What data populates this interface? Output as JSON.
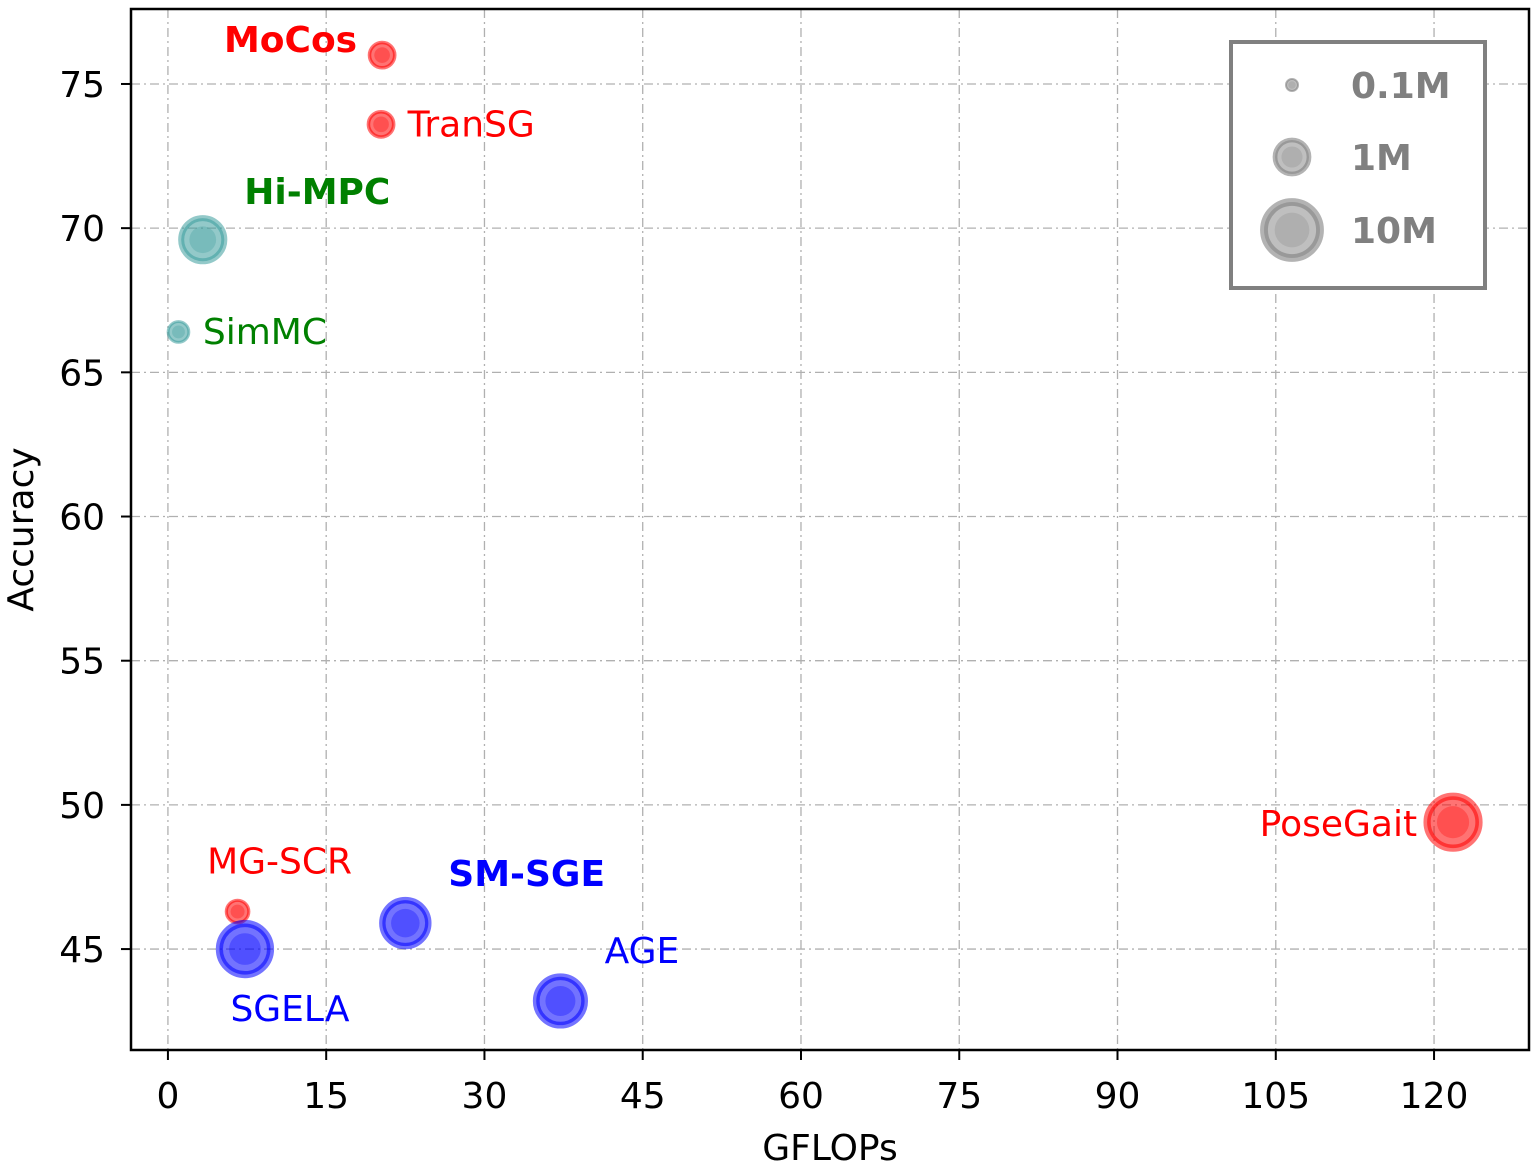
{
  "chart_data": {
    "type": "scatter",
    "title": "",
    "xlabel": "GFLOPs",
    "ylabel": "Accuracy",
    "xlim": [
      -3.5,
      129
    ],
    "ylim": [
      41.5,
      77.6
    ],
    "xticks": [
      0,
      15,
      30,
      45,
      60,
      75,
      90,
      105,
      120
    ],
    "yticks": [
      45,
      50,
      55,
      60,
      65,
      70,
      75
    ],
    "grid": true,
    "legend": {
      "placement": "top-right",
      "title": "",
      "entries": [
        {
          "label": "0.1M",
          "params_m": 0.1
        },
        {
          "label": "1M",
          "params_m": 1
        },
        {
          "label": "10M",
          "params_m": 10
        }
      ],
      "color": "#808080"
    },
    "colors": {
      "red": "#ff0000",
      "green": "#008000",
      "teal": "#3a9c9c",
      "blue": "#0000ff",
      "gray": "#808080"
    },
    "points": [
      {
        "label": "MoCos",
        "x": 20.3,
        "y": 76.0,
        "params_m": 0.4,
        "fill": "#ff0000",
        "label_color": "#ff0000",
        "bold": true,
        "label_pos": "left-above"
      },
      {
        "label": "TranSG",
        "x": 20.2,
        "y": 73.6,
        "params_m": 0.4,
        "fill": "#ff0000",
        "label_color": "#ff0000",
        "bold": false,
        "label_pos": "right"
      },
      {
        "label": "Hi-MPC",
        "x": 3.3,
        "y": 69.6,
        "params_m": 2.6,
        "fill": "#3a9c9c",
        "label_color": "#008000",
        "bold": true,
        "label_pos": "right-above"
      },
      {
        "label": "SimMC",
        "x": 1.0,
        "y": 66.4,
        "params_m": 0.25,
        "fill": "#3a9c9c",
        "label_color": "#008000",
        "bold": false,
        "label_pos": "right"
      },
      {
        "label": "MG-SCR",
        "x": 6.6,
        "y": 46.3,
        "params_m": 0.3,
        "fill": "#ff0000",
        "label_color": "#ff0000",
        "bold": false,
        "label_pos": "above"
      },
      {
        "label": "SGELA",
        "x": 7.3,
        "y": 45.0,
        "params_m": 6.0,
        "fill": "#0000ff",
        "label_color": "#0000ff",
        "bold": false,
        "label_pos": "below-right"
      },
      {
        "label": "SM-SGE",
        "x": 22.5,
        "y": 45.9,
        "params_m": 3.5,
        "fill": "#0000ff",
        "label_color": "#0000ff",
        "bold": true,
        "label_pos": "right-above"
      },
      {
        "label": "AGE",
        "x": 37.2,
        "y": 43.2,
        "params_m": 4.5,
        "fill": "#0000ff",
        "label_color": "#0000ff",
        "bold": false,
        "label_pos": "right-above"
      },
      {
        "label": "PoseGait",
        "x": 121.8,
        "y": 49.4,
        "params_m": 6.5,
        "fill": "#ff0000",
        "label_color": "#ff0000",
        "bold": false,
        "label_pos": "left"
      }
    ]
  }
}
